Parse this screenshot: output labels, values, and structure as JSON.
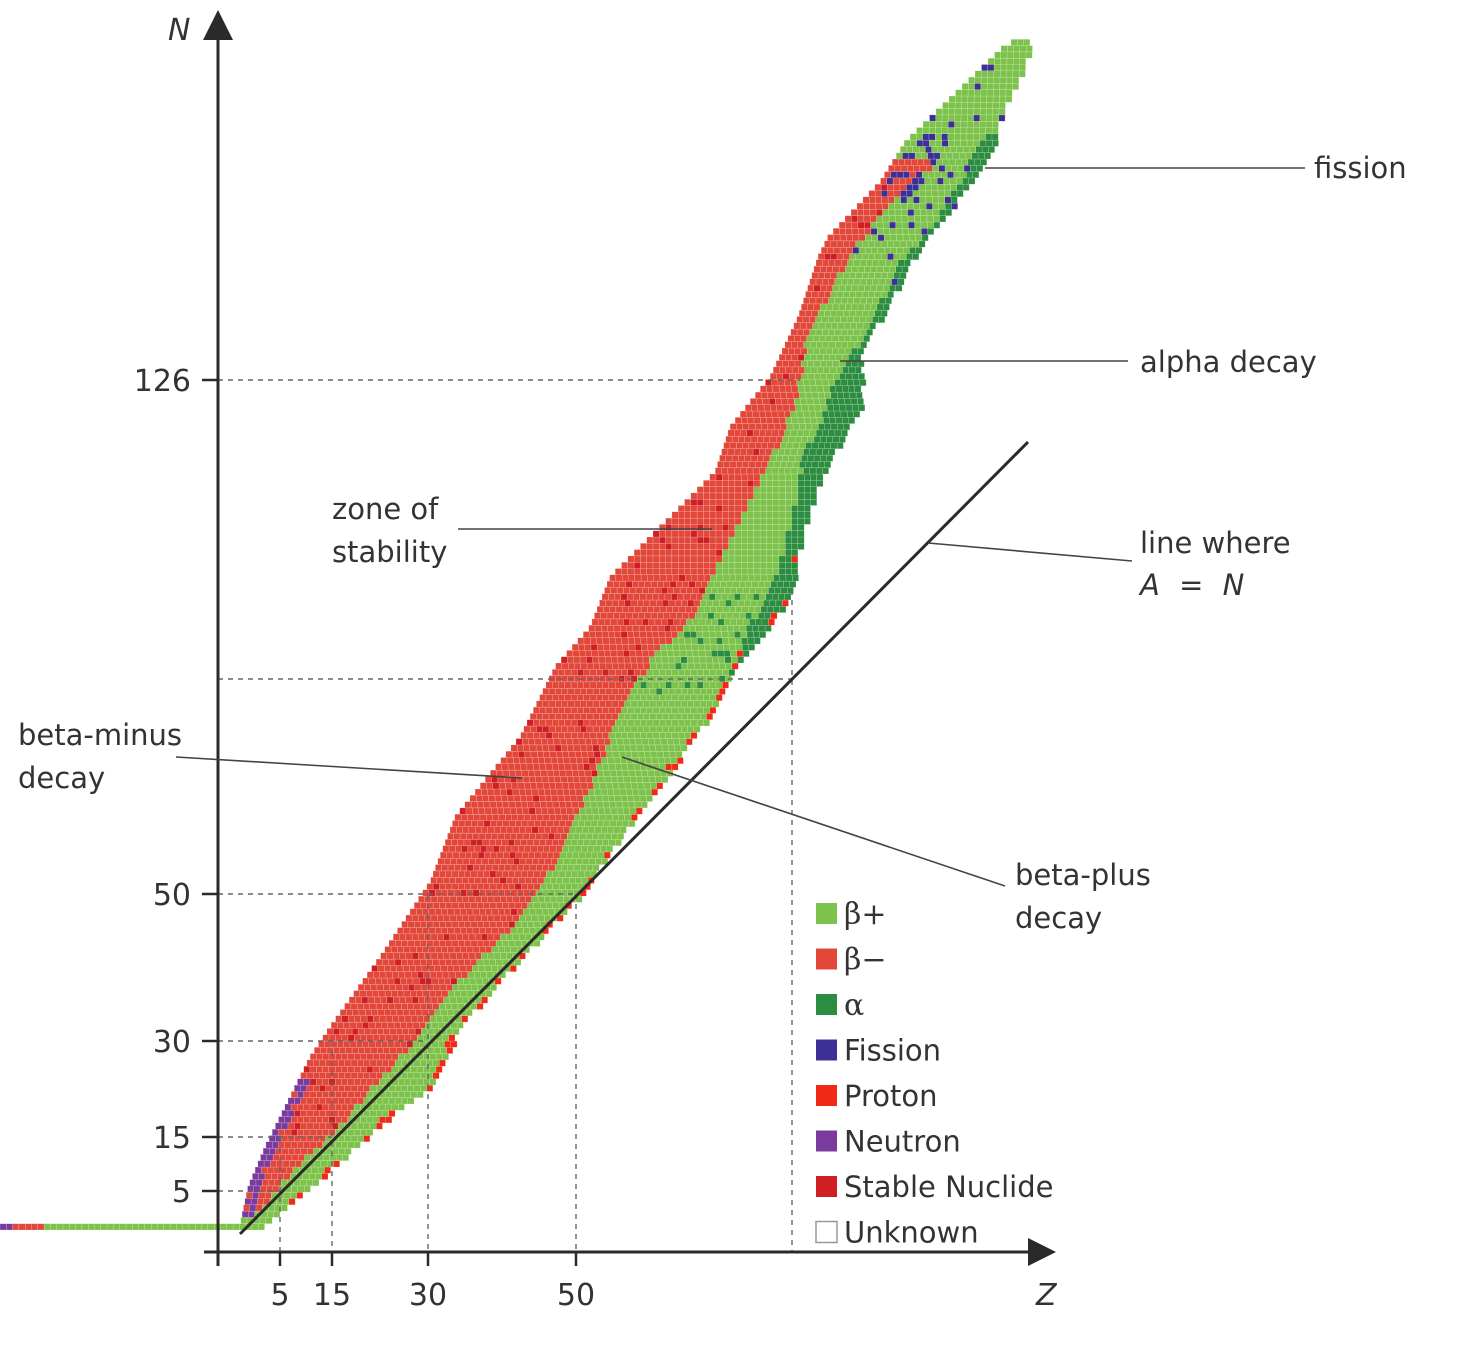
{
  "colors": {
    "beta_plus": "#7dc24a",
    "beta_minus": "#e2473a",
    "alpha": "#2c8c40",
    "fission": "#3d2f96",
    "proton": "#f02a16",
    "neutron": "#7b3a9e",
    "stable": "#cf1f24",
    "unknown": "#ffffff",
    "axis": "#333333",
    "grid_line": "#d0d0d0"
  },
  "axes": {
    "x_title": "Z",
    "y_title": "N",
    "x_ticks": [
      {
        "value": 5,
        "label": "5"
      },
      {
        "value": 15,
        "label": "15"
      },
      {
        "value": 30,
        "label": "30"
      },
      {
        "value": 50,
        "label": "50"
      }
    ],
    "y_ticks": [
      {
        "value": 5,
        "label": "5"
      },
      {
        "value": 15,
        "label": "15"
      },
      {
        "value": 30,
        "label": "30"
      },
      {
        "value": 50,
        "label": "50"
      },
      {
        "value": 126,
        "label": "126"
      }
    ]
  },
  "annotations": {
    "fission": "fission",
    "alpha_decay": "alpha decay",
    "zone_line1": "zone of",
    "zone_line2": "stability",
    "line_where": "line where",
    "a_eq_n_a": "A",
    "a_eq_n_eq": "=",
    "a_eq_n_n": "N",
    "beta_minus_line1": "beta-minus",
    "beta_minus_line2": "decay",
    "beta_plus_line1": "beta-plus",
    "beta_plus_line2": "decay"
  },
  "legend": [
    {
      "key": "beta_plus",
      "label": "β+",
      "greek": true
    },
    {
      "key": "beta_minus",
      "label": "β−",
      "greek": true
    },
    {
      "key": "alpha",
      "label": "α",
      "greek": true
    },
    {
      "key": "fission",
      "label": "Fission",
      "greek": false
    },
    {
      "key": "proton",
      "label": "Proton",
      "greek": false
    },
    {
      "key": "neutron",
      "label": "Neutron",
      "greek": false
    },
    {
      "key": "stable",
      "label": "Stable Nuclide",
      "greek": false
    },
    {
      "key": "unknown",
      "label": "Unknown",
      "greek": false
    }
  ]
}
